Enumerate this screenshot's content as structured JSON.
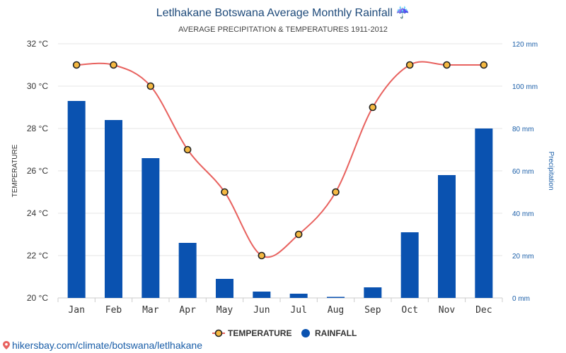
{
  "header": {
    "title": "Letlhakane Botswana Average Monthly Rainfall",
    "title_icon": "umbrella-rain-icon",
    "subtitle": "AVERAGE PRECIPITATION & TEMPERATURES 1911-2012"
  },
  "footer": {
    "link_text": "hikersbay.com/climate/botswana/letlhakane",
    "icon": "map-pin-icon"
  },
  "colors": {
    "bar": "#0a52b0",
    "line": "#e8625f",
    "marker_fill": "#f5b942",
    "marker_stroke": "#222222",
    "grid": "#e6e6e6",
    "left_axis_text": "#333333",
    "right_axis_text": "#1a5ea8"
  },
  "chart_data": {
    "type": "bar+line",
    "categories": [
      "Jan",
      "Feb",
      "Mar",
      "Apr",
      "May",
      "Jun",
      "Jul",
      "Aug",
      "Sep",
      "Oct",
      "Nov",
      "Dec"
    ],
    "series": [
      {
        "name": "TEMPERATURE",
        "type": "line",
        "axis": "left",
        "unit": "°C",
        "values": [
          31,
          31,
          30,
          27,
          25,
          22,
          23,
          25,
          29,
          31,
          31,
          31
        ]
      },
      {
        "name": "RAINFALL",
        "type": "bar",
        "axis": "right",
        "unit": "mm",
        "values": [
          93,
          84,
          66,
          26,
          9,
          3,
          2,
          0.5,
          5,
          31,
          58,
          80
        ]
      }
    ],
    "left_axis": {
      "label": "TEMPERATURE",
      "ylim": [
        20,
        32
      ],
      "ticks": [
        "20 °C",
        "22 °C",
        "24 °C",
        "26 °C",
        "28 °C",
        "30 °C",
        "32 °C"
      ]
    },
    "right_axis": {
      "label": "Precipitation",
      "ylim": [
        0,
        120
      ],
      "ticks": [
        "0 mm",
        "20 mm",
        "40 mm",
        "60 mm",
        "80 mm",
        "100 mm",
        "120 mm"
      ]
    },
    "grid": true,
    "legend_position": "bottom-center",
    "legend": [
      "TEMPERATURE",
      "RAINFALL"
    ]
  }
}
